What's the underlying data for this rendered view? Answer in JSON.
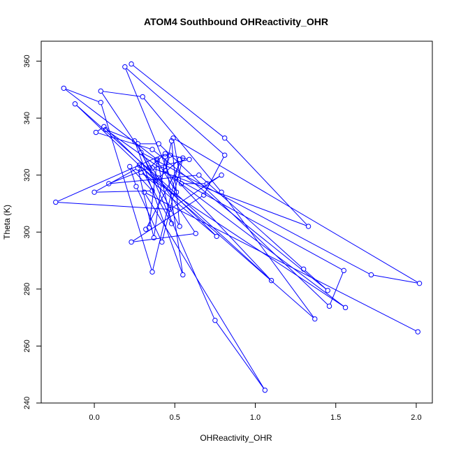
{
  "chart_data": {
    "type": "line",
    "title": "ATOM4 Southbound OHReactivity_OHR",
    "xlabel": "OHReactivity_OHR",
    "ylabel": "Theta (K)",
    "xlim": [
      -0.33,
      2.1
    ],
    "ylim": [
      240,
      367
    ],
    "xticks": [
      0.0,
      0.5,
      1.0,
      1.5,
      2.0
    ],
    "xtick_labels": [
      "0.0",
      "0.5",
      "1.0",
      "1.5",
      "2.0"
    ],
    "yticks": [
      240,
      260,
      280,
      300,
      320,
      340,
      360
    ],
    "ytick_labels": [
      "240",
      "260",
      "280",
      "300",
      "320",
      "340",
      "360"
    ],
    "grid": false,
    "legend": "none",
    "colors": {
      "series": "#0000ff",
      "axis": "#000000"
    },
    "series": [
      {
        "marker": "open-circle",
        "x": [
          0.23,
          0.81,
          1.33,
          0.36,
          0.59,
          0.47,
          0.44,
          0.48,
          0.53,
          0.29,
          1.72,
          2.02,
          0.49,
          0.54,
          0.7,
          0.79,
          0.47,
          -0.24,
          0.44,
          0.34,
          0.09,
          0.65,
          1.3,
          1.45,
          0.36,
          0.01,
          0.06,
          0.76,
          0.29,
          1.56,
          0.42,
          0.07,
          0.25,
          0.55,
          0.44,
          0.37,
          0.27,
          -0.0,
          0.36,
          0.22,
          0.26,
          0.42,
          0.55,
          0.32,
          0.34,
          0.39,
          0.51,
          0.19,
          0.81,
          0.68,
          0.23,
          0.63,
          0.04,
          0.3,
          0.79,
          1.37,
          0.28,
          0.48,
          0.39,
          -0.19,
          0.04,
          0.36,
          0.53,
          0.38,
          -0.12,
          0.4,
          1.1,
          0.5,
          1.55,
          1.46,
          0.4,
          0.27,
          0.75,
          1.06,
          0.31,
          2.01
        ]
      }
    ],
    "y": [
      359.0,
      333.0,
      302.0,
      322.5,
      325.5,
      327.0,
      321.5,
      332.0,
      302.0,
      328.0,
      285.0,
      282.0,
      333.0,
      317.0,
      317.0,
      320.0,
      308.0,
      310.5,
      327.5,
      322.5,
      317.0,
      320.0,
      287.0,
      279.5,
      329.0,
      335.0,
      337.0,
      298.5,
      321.0,
      273.5,
      322.0,
      336.0,
      332.0,
      285.0,
      326.5,
      298.0,
      322.5,
      314.0,
      314.5,
      323.0,
      316.0,
      296.5,
      326.0,
      301.0,
      301.5,
      325.0,
      314.0,
      358.0,
      327.0,
      313.0,
      296.5,
      299.5,
      349.5,
      347.5,
      314.0,
      269.5,
      323.5,
      303.0,
      325.5,
      350.5,
      345.5,
      286.0,
      325.5,
      318.0,
      345.0,
      319.0,
      283.0,
      319.0,
      286.5,
      274.0,
      331.0,
      331.0,
      269.0,
      244.5,
      314.0,
      265.0
    ]
  }
}
